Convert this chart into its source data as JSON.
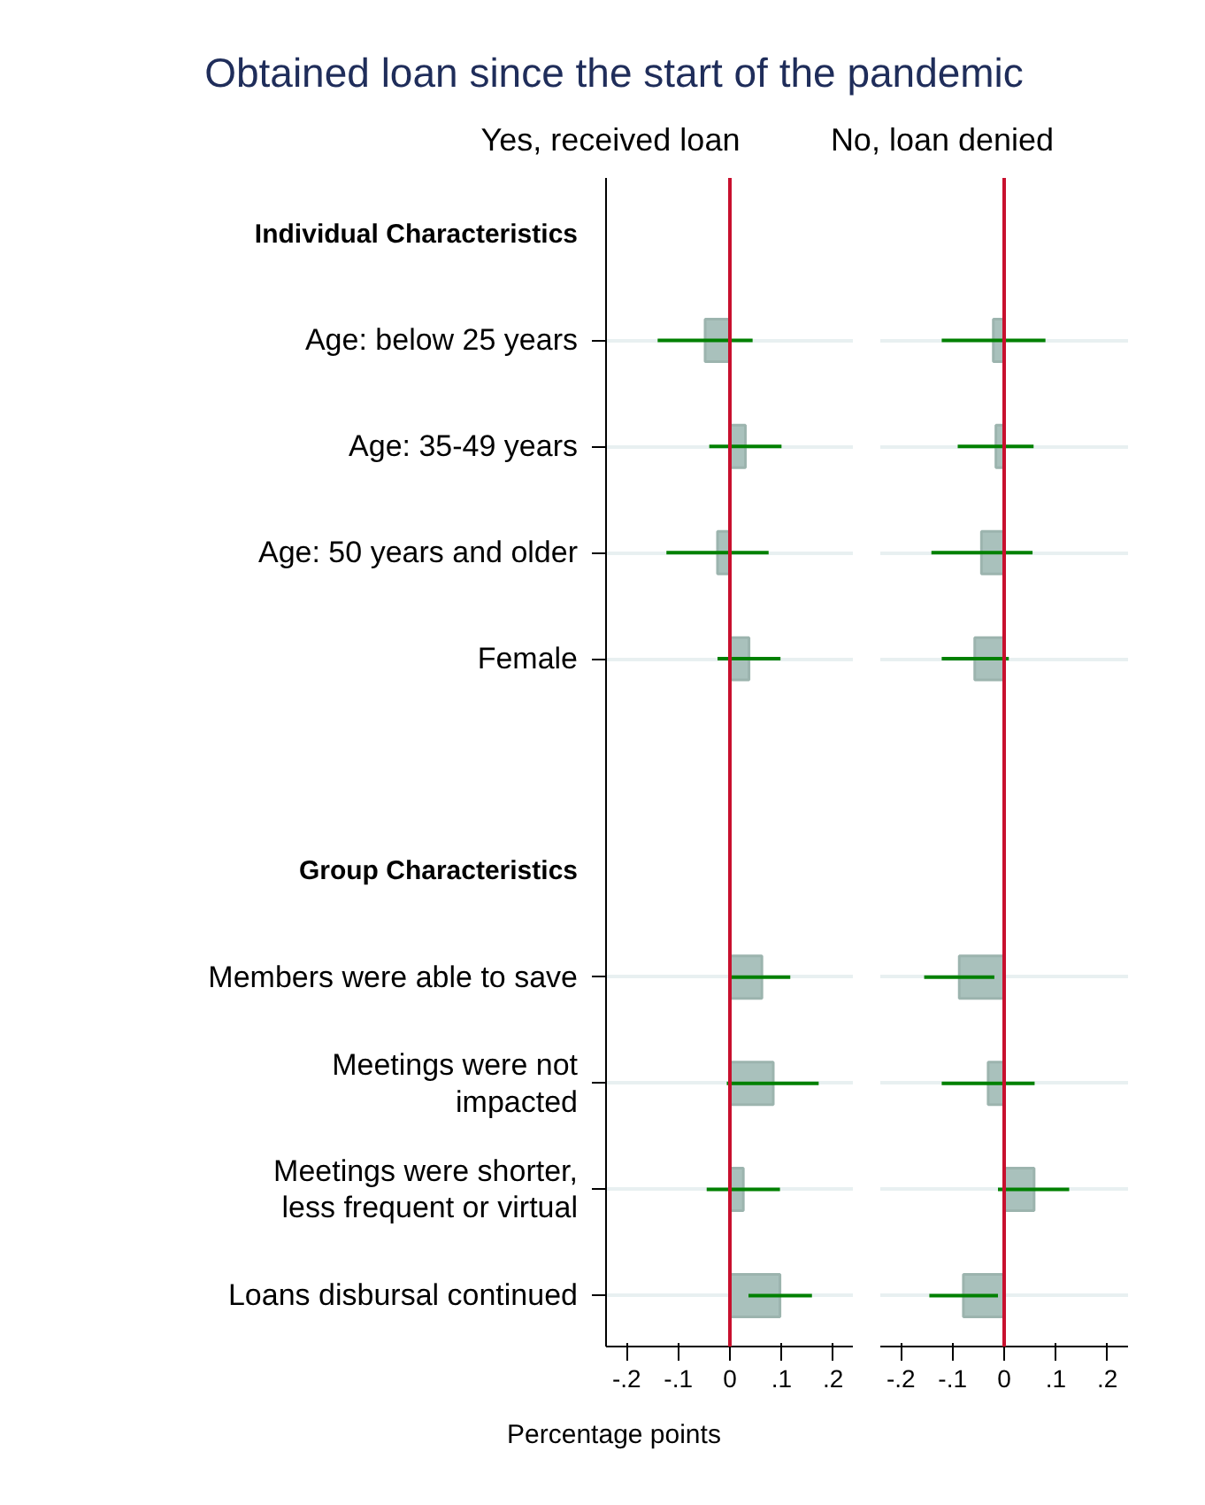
{
  "chart_data": [
    {
      "type": "bar",
      "orientation": "horizontal",
      "title": "Obtained loan since the start of the pandemic",
      "subtitle": "Yes, received loan",
      "xlabel": "Percentage points",
      "categories": [
        "Individual Characteristics",
        "Age: below 25 years",
        "Age: 35-49 years",
        "Age: 50 years and older",
        "Female",
        null,
        "Group Characteristics",
        "Members were able to save",
        "Meetings were not impacted",
        "Meetings were shorter, less frequent or virtual",
        "Loans disbursal continued"
      ],
      "series": [
        {
          "color": "#a9c1bc",
          "values": [
            null,
            -0.048,
            0.03,
            -0.024,
            0.037,
            null,
            null,
            0.062,
            0.084,
            0.026,
            0.097
          ],
          "errors": [
            null,
            [
              -0.14,
              0.044
            ],
            [
              -0.04,
              0.1
            ],
            [
              -0.123,
              0.075
            ],
            [
              -0.024,
              0.098
            ],
            null,
            null,
            [
              0.003,
              0.117
            ],
            [
              -0.006,
              0.172
            ],
            [
              -0.045,
              0.097
            ],
            [
              0.036,
              0.159
            ]
          ]
        }
      ],
      "xlim": [
        -0.24,
        0.24
      ],
      "xticks": [
        {
          "value": -0.2,
          "label": "-.2"
        },
        {
          "value": -0.1,
          "label": "-.1"
        },
        0,
        {
          "value": 0.1,
          "label": ".1"
        },
        {
          "value": 0.2,
          "label": ".2"
        }
      ],
      "ref_lines": [
        {
          "axis": "x",
          "value": 0,
          "color": "#c8102e"
        }
      ],
      "grid": "y"
    },
    {
      "type": "bar",
      "orientation": "horizontal",
      "title": "No, loan denied",
      "categories": [
        "Individual Characteristics",
        "Age: below 25 years",
        "Age: 35-49 years",
        "Age: 50 years and older",
        "Female",
        null,
        "Group Characteristics",
        "Members were able to save",
        "Meetings were not impacted",
        "Meetings were shorter, less frequent or virtual",
        "Loans disbursal continued"
      ],
      "series": [
        {
          "color": "#a9c1bc",
          "values": [
            null,
            -0.021,
            -0.016,
            -0.044,
            -0.057,
            null,
            null,
            -0.087,
            -0.031,
            0.058,
            -0.079
          ],
          "errors": [
            null,
            [
              -0.121,
              0.08
            ],
            [
              -0.09,
              0.057
            ],
            [
              -0.141,
              0.055
            ],
            [
              -0.121,
              0.009
            ],
            null,
            null,
            [
              -0.155,
              -0.019
            ],
            [
              -0.121,
              0.059
            ],
            [
              -0.012,
              0.126
            ],
            [
              -0.145,
              -0.012
            ]
          ]
        }
      ],
      "xlim": [
        -0.24,
        0.24
      ],
      "xticks": [
        {
          "value": -0.2,
          "label": "-.2"
        },
        {
          "value": -0.1,
          "label": "-.1"
        },
        0,
        {
          "value": 0.1,
          "label": ".1"
        },
        {
          "value": 0.2,
          "label": ".2"
        }
      ],
      "ref_lines": [
        {
          "axis": "x",
          "value": 0,
          "color": "#c8102e"
        }
      ],
      "grid": "y",
      "tick_labels": "x"
    }
  ]
}
